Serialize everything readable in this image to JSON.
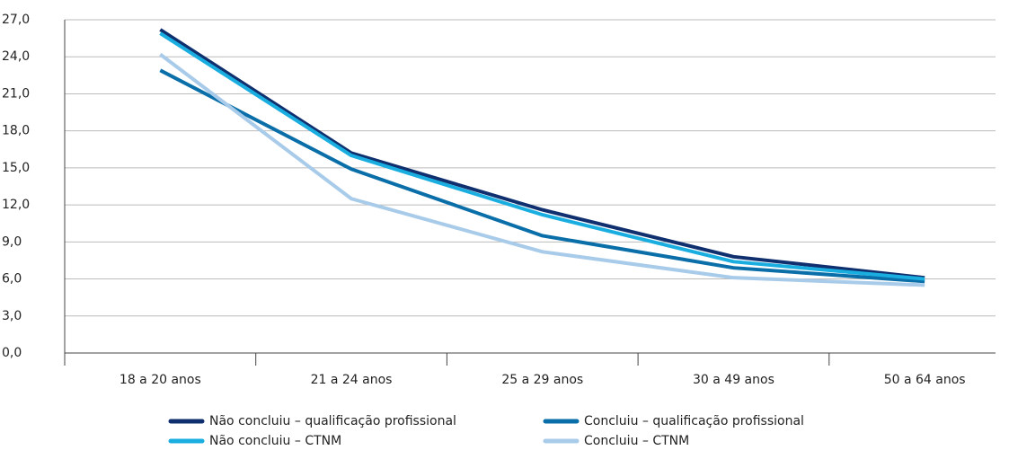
{
  "chart_data": {
    "type": "line",
    "categories": [
      "18 a 20 anos",
      "21 a 24 anos",
      "25 a 29 anos",
      "30 a 49 anos",
      "50 a 64 anos"
    ],
    "series": [
      {
        "name": "Não concluiu – qualificação profissional",
        "color": "#0f2f6e",
        "values": [
          26.2,
          16.2,
          11.6,
          7.8,
          6.1
        ]
      },
      {
        "name": "Concluiu – qualificação profissional",
        "color": "#0a6ea8",
        "values": [
          22.9,
          14.9,
          9.5,
          6.9,
          5.8
        ]
      },
      {
        "name": "Não concluiu – CTNM",
        "color": "#1aaee0",
        "values": [
          25.9,
          16.0,
          11.2,
          7.4,
          6.0
        ]
      },
      {
        "name": "Concluiu – CTNM",
        "color": "#a8cbea",
        "values": [
          24.2,
          12.5,
          8.2,
          6.1,
          5.5
        ]
      }
    ],
    "ylim": [
      0,
      27
    ],
    "yticks": [
      {
        "value": 0,
        "label": "0,0"
      },
      {
        "value": 3,
        "label": "3,0"
      },
      {
        "value": 6,
        "label": "6,0"
      },
      {
        "value": 9,
        "label": "9,0"
      },
      {
        "value": 12,
        "label": "12,0"
      },
      {
        "value": 15,
        "label": "15,0"
      },
      {
        "value": 18,
        "label": "18,0"
      },
      {
        "value": 21,
        "label": "21,0"
      },
      {
        "value": 24,
        "label": "24,0"
      },
      {
        "value": 27,
        "label": "27,0"
      }
    ],
    "grid": true
  }
}
